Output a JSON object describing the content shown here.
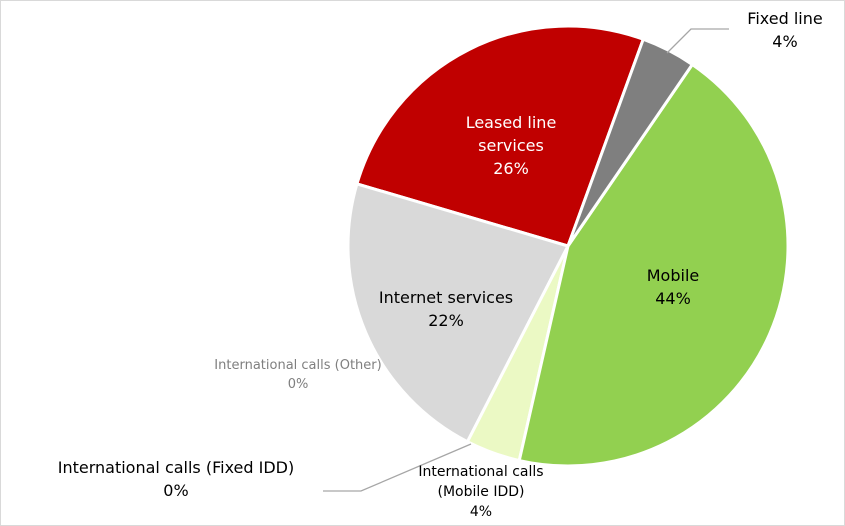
{
  "chart_data": {
    "type": "pie",
    "categories": [
      "Fixed line",
      "Mobile",
      "International calls (Mobile IDD)",
      "International calls (Fixed IDD)",
      "International calls (Other)",
      "Internet services",
      "Leased line services"
    ],
    "values": [
      4,
      44,
      4,
      0,
      0,
      22,
      26
    ],
    "value_labels": [
      "4%",
      "44%",
      "4%",
      "0%",
      "0%",
      "22%",
      "26%"
    ],
    "colors": [
      "#7f7f7f",
      "#92d050",
      "#ebf9c4",
      "#1f2a8c",
      "#ffffff",
      "#d9d9d9",
      "#c00000"
    ]
  }
}
